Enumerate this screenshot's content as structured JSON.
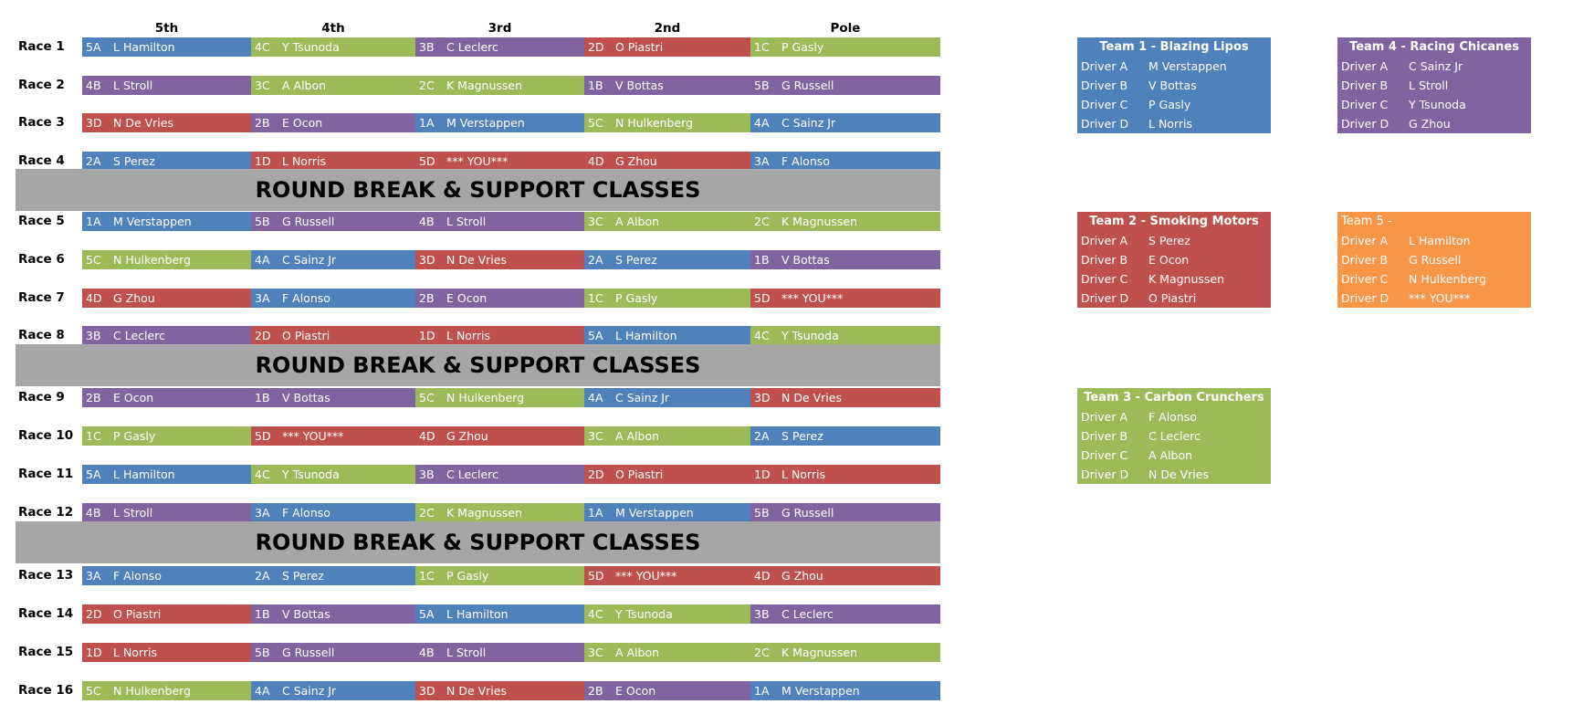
{
  "colors": {
    "A": "#4f81bd",
    "B": "#8064a2",
    "C": "#9bbb59",
    "D": "#c0504d",
    "E": "#f79646"
  },
  "team_colors": {
    "1": "#4f81bd",
    "2": "#c0504d",
    "3": "#9bbb59",
    "4": "#8064a2",
    "5": "#f79646"
  },
  "headers": [
    "5th",
    "4th",
    "3rd",
    "2nd",
    "Pole"
  ],
  "races": [
    {
      "label": "Race 1",
      "cells": [
        {
          "code": "5A",
          "name": "L Hamilton"
        },
        {
          "code": "4C",
          "name": "Y Tsunoda"
        },
        {
          "code": "3B",
          "name": "C Leclerc"
        },
        {
          "code": "2D",
          "name": "O Piastri"
        },
        {
          "code": "1C",
          "name": "P Gasly"
        }
      ]
    },
    {
      "label": "Race 2",
      "cells": [
        {
          "code": "4B",
          "name": "L Stroll"
        },
        {
          "code": "3C",
          "name": "A Albon"
        },
        {
          "code": "2C",
          "name": "K Magnussen"
        },
        {
          "code": "1B",
          "name": "V Bottas"
        },
        {
          "code": "5B",
          "name": "G Russell"
        }
      ]
    },
    {
      "label": "Race 3",
      "cells": [
        {
          "code": "3D",
          "name": "N De Vries"
        },
        {
          "code": "2B",
          "name": "E Ocon"
        },
        {
          "code": "1A",
          "name": "M Verstappen"
        },
        {
          "code": "5C",
          "name": "N Hulkenberg"
        },
        {
          "code": "4A",
          "name": "C Sainz Jr"
        }
      ]
    },
    {
      "label": "Race 4",
      "cells": [
        {
          "code": "2A",
          "name": "S Perez"
        },
        {
          "code": "1D",
          "name": "L Norris"
        },
        {
          "code": "5D",
          "name": "*** YOU***"
        },
        {
          "code": "4D",
          "name": "G Zhou"
        },
        {
          "code": "3A",
          "name": "F Alonso"
        }
      ]
    },
    {
      "label": "Race 5",
      "cells": [
        {
          "code": "1A",
          "name": "M Verstappen"
        },
        {
          "code": "5B",
          "name": "G Russell"
        },
        {
          "code": "4B",
          "name": "L Stroll"
        },
        {
          "code": "3C",
          "name": "A Albon"
        },
        {
          "code": "2C",
          "name": "K Magnussen"
        }
      ]
    },
    {
      "label": "Race 6",
      "cells": [
        {
          "code": "5C",
          "name": "N Hulkenberg"
        },
        {
          "code": "4A",
          "name": "C Sainz Jr"
        },
        {
          "code": "3D",
          "name": "N De Vries"
        },
        {
          "code": "2A",
          "name": "S Perez"
        },
        {
          "code": "1B",
          "name": "V Bottas"
        }
      ]
    },
    {
      "label": "Race 7",
      "cells": [
        {
          "code": "4D",
          "name": "G Zhou"
        },
        {
          "code": "3A",
          "name": "F Alonso"
        },
        {
          "code": "2B",
          "name": "E Ocon"
        },
        {
          "code": "1C",
          "name": "P Gasly"
        },
        {
          "code": "5D",
          "name": "*** YOU***"
        }
      ]
    },
    {
      "label": "Race 8",
      "cells": [
        {
          "code": "3B",
          "name": "C Leclerc"
        },
        {
          "code": "2D",
          "name": "O Piastri"
        },
        {
          "code": "1D",
          "name": "L Norris"
        },
        {
          "code": "5A",
          "name": "L Hamilton"
        },
        {
          "code": "4C",
          "name": "Y Tsunoda"
        }
      ]
    },
    {
      "label": "Race 9",
      "cells": [
        {
          "code": "2B",
          "name": "E Ocon"
        },
        {
          "code": "1B",
          "name": "V Bottas"
        },
        {
          "code": "5C",
          "name": "N Hulkenberg"
        },
        {
          "code": "4A",
          "name": "C Sainz Jr"
        },
        {
          "code": "3D",
          "name": "N De Vries"
        }
      ]
    },
    {
      "label": "Race 10",
      "cells": [
        {
          "code": "1C",
          "name": "P Gasly"
        },
        {
          "code": "5D",
          "name": "*** YOU***"
        },
        {
          "code": "4D",
          "name": "G Zhou"
        },
        {
          "code": "3C",
          "name": "A Albon"
        },
        {
          "code": "2A",
          "name": "S Perez"
        }
      ]
    },
    {
      "label": "Race 11",
      "cells": [
        {
          "code": "5A",
          "name": "L Hamilton"
        },
        {
          "code": "4C",
          "name": "Y Tsunoda"
        },
        {
          "code": "3B",
          "name": "C Leclerc"
        },
        {
          "code": "2D",
          "name": "O Piastri"
        },
        {
          "code": "1D",
          "name": "L Norris"
        }
      ]
    },
    {
      "label": "Race 12",
      "cells": [
        {
          "code": "4B",
          "name": "L Stroll"
        },
        {
          "code": "3A",
          "name": "F Alonso"
        },
        {
          "code": "2C",
          "name": "K Magnussen"
        },
        {
          "code": "1A",
          "name": "M Verstappen"
        },
        {
          "code": "5B",
          "name": "G Russell"
        }
      ]
    },
    {
      "label": "Race 13",
      "cells": [
        {
          "code": "3A",
          "name": "F Alonso"
        },
        {
          "code": "2A",
          "name": "S Perez"
        },
        {
          "code": "1C",
          "name": "P Gasly"
        },
        {
          "code": "5D",
          "name": "*** YOU***"
        },
        {
          "code": "4D",
          "name": "G Zhou"
        }
      ]
    },
    {
      "label": "Race 14",
      "cells": [
        {
          "code": "2D",
          "name": "O Piastri"
        },
        {
          "code": "1B",
          "name": "V Bottas"
        },
        {
          "code": "5A",
          "name": "L Hamilton"
        },
        {
          "code": "4C",
          "name": "Y Tsunoda"
        },
        {
          "code": "3B",
          "name": "C Leclerc"
        }
      ]
    },
    {
      "label": "Race 15",
      "cells": [
        {
          "code": "1D",
          "name": "L Norris"
        },
        {
          "code": "5B",
          "name": "G Russell"
        },
        {
          "code": "4B",
          "name": "L Stroll"
        },
        {
          "code": "3C",
          "name": "A Albon"
        },
        {
          "code": "2C",
          "name": "K Magnussen"
        }
      ]
    },
    {
      "label": "Race 16",
      "cells": [
        {
          "code": "5C",
          "name": "N Hulkenberg"
        },
        {
          "code": "4A",
          "name": "C Sainz Jr"
        },
        {
          "code": "3D",
          "name": "N De Vries"
        },
        {
          "code": "2B",
          "name": "E Ocon"
        },
        {
          "code": "1A",
          "name": "M Verstappen"
        }
      ]
    }
  ],
  "break_text": "ROUND BREAK & SUPPORT CLASSES",
  "teams": [
    {
      "id": "1",
      "name": "Team 1 - Blazing Lipos",
      "drivers": [
        {
          "label": "Driver A",
          "name": "M Verstappen"
        },
        {
          "label": "Driver B",
          "name": "V Bottas"
        },
        {
          "label": "Driver C",
          "name": "P Gasly"
        },
        {
          "label": "Driver D",
          "name": "L Norris"
        }
      ]
    },
    {
      "id": "2",
      "name": "Team 2 - Smoking Motors",
      "drivers": [
        {
          "label": "Driver A",
          "name": "S Perez"
        },
        {
          "label": "Driver B",
          "name": "E Ocon"
        },
        {
          "label": "Driver C",
          "name": "K Magnussen"
        },
        {
          "label": "Driver D",
          "name": "O Piastri"
        }
      ]
    },
    {
      "id": "3",
      "name": "Team 3 - Carbon Crunchers",
      "drivers": [
        {
          "label": "Driver A",
          "name": "F Alonso"
        },
        {
          "label": "Driver B",
          "name": "C Leclerc"
        },
        {
          "label": "Driver C",
          "name": "A Albon"
        },
        {
          "label": "Driver D",
          "name": "N De Vries"
        }
      ]
    },
    {
      "id": "4",
      "name": "Team 4 - Racing Chicanes",
      "drivers": [
        {
          "label": "Driver A",
          "name": "C Sainz Jr"
        },
        {
          "label": "Driver B",
          "name": "L Stroll"
        },
        {
          "label": "Driver C",
          "name": "Y Tsunoda"
        },
        {
          "label": "Driver D",
          "name": "G Zhou"
        }
      ]
    },
    {
      "id": "5",
      "name": "Team 5 -",
      "drivers": [
        {
          "label": "Driver A",
          "name": "L Hamilton"
        },
        {
          "label": "Driver B",
          "name": "G Russell"
        },
        {
          "label": "Driver C",
          "name": "N Hulkenberg"
        },
        {
          "label": "Driver D",
          "name": "*** YOU***"
        }
      ]
    }
  ]
}
